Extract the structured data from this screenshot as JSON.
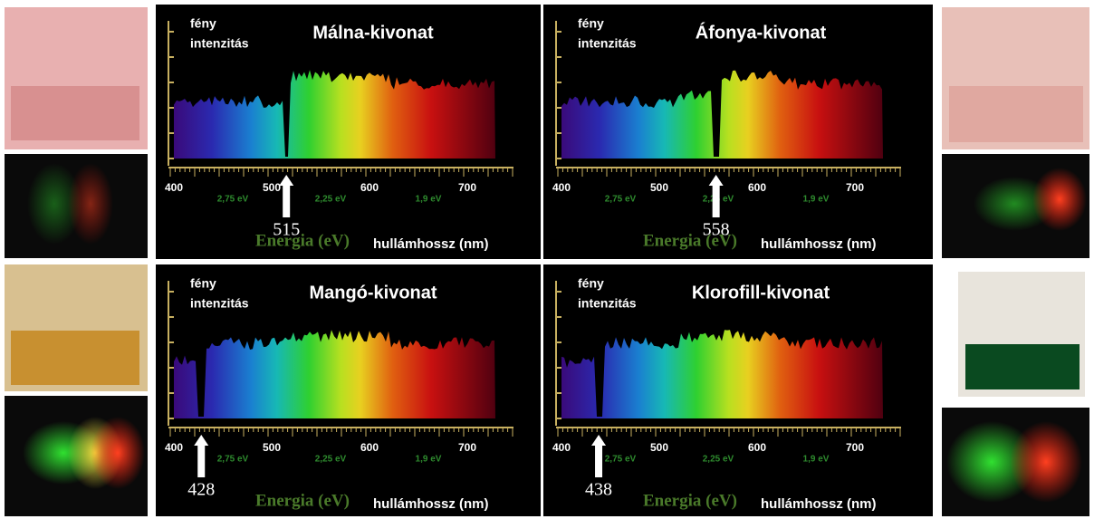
{
  "panels": [
    {
      "title": "Málna-kivonat",
      "y_label": [
        "fény",
        "intenzitás"
      ],
      "x_label": "hullámhossz (nm)",
      "energy_label": "Energia (eV)",
      "wavelength_ticks": [
        400,
        500,
        600,
        700
      ],
      "energy_ticks": [
        "2,75 eV",
        "2,25 eV",
        "1,9 eV"
      ],
      "marker": 515
    },
    {
      "title": "Áfonya-kivonat",
      "y_label": [
        "fény",
        "intenzitás"
      ],
      "x_label": "hullámhossz (nm)",
      "energy_label": "Energia (eV)",
      "wavelength_ticks": [
        400,
        500,
        600,
        700
      ],
      "energy_ticks": [
        "2,75 eV",
        "2,25 eV",
        "1,9 eV"
      ],
      "marker": 558
    },
    {
      "title": "Mangó-kivonat",
      "y_label": [
        "fény",
        "intenzitás"
      ],
      "x_label": "hullámhossz (nm)",
      "energy_label": "Energia (eV)",
      "wavelength_ticks": [
        400,
        500,
        600,
        700
      ],
      "energy_ticks": [
        "2,75 eV",
        "2,25 eV",
        "1,9 eV"
      ],
      "marker": 428
    },
    {
      "title": "Klorofill-kivonat",
      "y_label": [
        "fény",
        "intenzitás"
      ],
      "x_label": "hullámhossz (nm)",
      "energy_label": "Energia (eV)",
      "wavelength_ticks": [
        400,
        500,
        600,
        700
      ],
      "energy_ticks": [
        "2,75 eV",
        "2,25 eV",
        "1,9 eV"
      ],
      "marker": 438
    }
  ]
}
